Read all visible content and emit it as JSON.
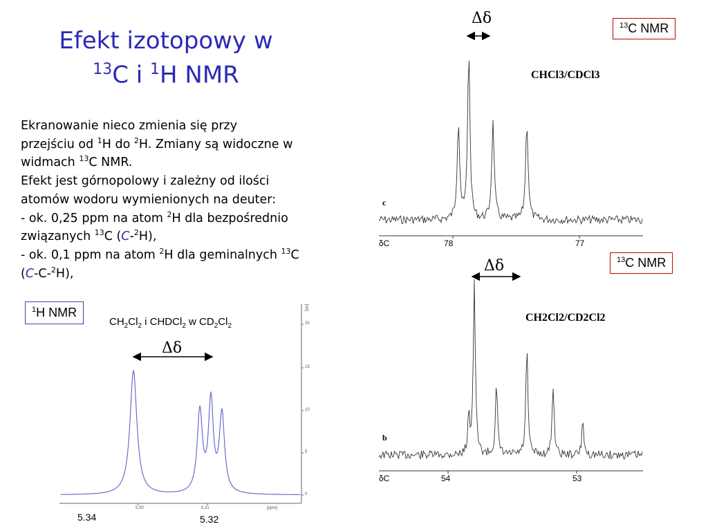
{
  "slide": {
    "title_line1": "Efekt izotopowy w",
    "title_line2_sup1": "13",
    "title_line2_c": "C i ",
    "title_line2_sup2": "1",
    "title_line2_rest": "H NMR"
  },
  "text": {
    "l1": "Ekranowanie nieco zmienia się przy",
    "l2a": "przejściu od ",
    "l2s1": "1",
    "l2b": "H do ",
    "l2s2": "2",
    "l2c": "H. Zmiany są widoczne w",
    "l3a": "widmach ",
    "l3s": "13",
    "l3b": "C NMR.",
    "l4": "Efekt jest górnopolowy i zależny od ilości",
    "l5": "atomów wodoru wymienionych na deuter:",
    "l6a": "- ok. 0,25 ppm na atom ",
    "l6s": "2",
    "l6b": "H dla bezpośrednio",
    "l7a": "związanych ",
    "l7s1": "13",
    "l7b": "C (",
    "l7c": "C",
    "l7d": "-",
    "l7s2": "2",
    "l7e": "H),",
    "l8a": "- ok. 0,1 ppm na atom ",
    "l8s1": "2",
    "l8b": "H dla geminalnych ",
    "l8s2": "13",
    "l8c": "C",
    "l9a": "(",
    "l9b": "C",
    "l9c": "-C-",
    "l9s": "2",
    "l9d": "H),"
  },
  "spectrum_c1": {
    "box_sup": "13",
    "box_label": "C NMR",
    "delta": "Δδ",
    "compound": "CHCl3/CDCl3",
    "panel_letter": "c",
    "axis_symbol": "δC",
    "tick1": "78",
    "tick2": "77"
  },
  "spectrum_c2": {
    "box_sup": "13",
    "box_label": "C NMR",
    "delta": "Δδ",
    "compound": "CH2Cl2/CD2Cl2",
    "panel_letter": "b",
    "axis_symbol": "δC",
    "tick1": "54",
    "tick2": "53"
  },
  "spectrum_h": {
    "box_sup": "1",
    "box_label": "H NMR",
    "caption": {
      "a": "CH",
      "s1": "2",
      "b": "Cl",
      "s2": "2",
      "c": " i CHDCl",
      "s3": "2",
      "d": " w CD",
      "s4": "2",
      "e": "Cl",
      "s5": "2"
    },
    "delta": "Δδ",
    "tick_left": "5.34",
    "tick_right": "5.32",
    "axis_small": [
      "5.30",
      "5.31",
      "[ppm]"
    ],
    "side_ticks": [
      "20",
      "15",
      "10",
      "5",
      "0"
    ],
    "side_unit": "[rel]"
  },
  "colors": {
    "title": "#2a2ab4",
    "box_border": "#c00000",
    "h_border": "#4a3aa6",
    "h_trace": "#6a6ad0"
  }
}
